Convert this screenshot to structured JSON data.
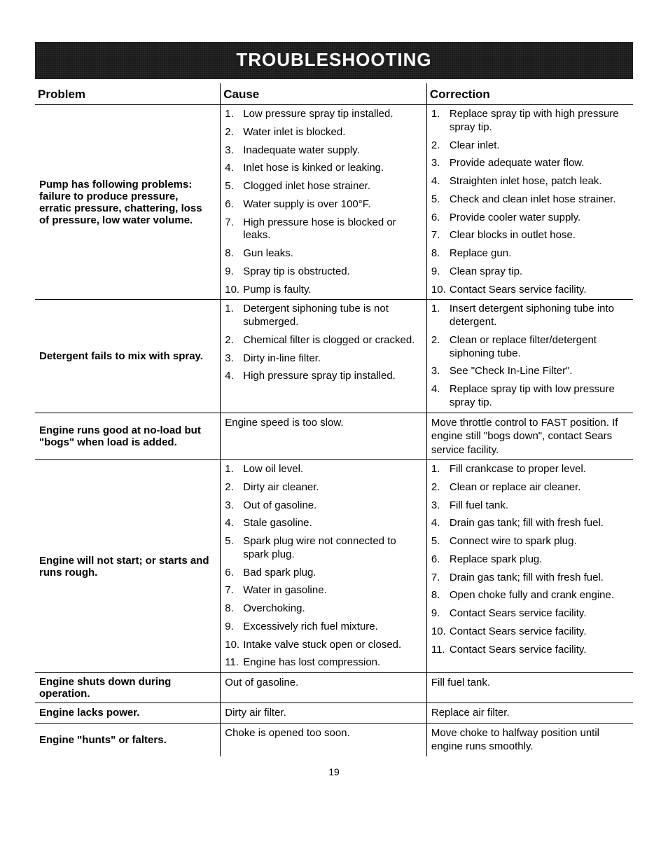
{
  "banner_title": "TROUBLESHOOTING",
  "page_number": "19",
  "headers": {
    "problem": "Problem",
    "cause": "Cause",
    "correction": "Correction"
  },
  "rows": [
    {
      "problem": "Pump has following problems: failure to produce pressure, erratic pressure, chattering, loss of pressure, low water volume.",
      "causes": [
        {
          "n": "1.",
          "t": "Low pressure spray tip installed."
        },
        {
          "n": "2.",
          "t": "Water inlet is blocked."
        },
        {
          "n": "3.",
          "t": "Inadequate water supply."
        },
        {
          "n": "4.",
          "t": "Inlet hose is kinked or leaking."
        },
        {
          "n": "5.",
          "t": "Clogged inlet hose strainer."
        },
        {
          "n": "6.",
          "t": "Water supply is over 100°F."
        },
        {
          "n": "7.",
          "t": "High pressure hose is blocked or leaks."
        },
        {
          "n": "8.",
          "t": "Gun leaks."
        },
        {
          "n": "9.",
          "t": "Spray tip is obstructed."
        },
        {
          "n": "10.",
          "t": "Pump is faulty."
        }
      ],
      "corrections": [
        {
          "n": "1.",
          "t": "Replace spray tip with high pressure spray tip."
        },
        {
          "n": "2.",
          "t": "Clear inlet."
        },
        {
          "n": "3.",
          "t": "Provide adequate water flow."
        },
        {
          "n": "4.",
          "t": "Straighten inlet hose, patch leak."
        },
        {
          "n": "5.",
          "t": "Check and clean inlet hose strainer."
        },
        {
          "n": "6.",
          "t": "Provide cooler water supply."
        },
        {
          "n": "7.",
          "t": "Clear blocks in outlet hose."
        },
        {
          "n": "8.",
          "t": "Replace gun."
        },
        {
          "n": "9.",
          "t": "Clean spray tip."
        },
        {
          "n": "10.",
          "t": "Contact Sears service facility."
        }
      ]
    },
    {
      "problem": "Detergent fails to mix with spray.",
      "causes": [
        {
          "n": "1.",
          "t": "Detergent siphoning tube is not submerged."
        },
        {
          "n": "2.",
          "t": "Chemical filter is clogged or cracked."
        },
        {
          "n": "3.",
          "t": "Dirty in-line filter."
        },
        {
          "n": "4.",
          "t": "High pressure spray tip installed."
        }
      ],
      "corrections": [
        {
          "n": "1.",
          "t": "Insert detergent siphoning tube into detergent."
        },
        {
          "n": "2.",
          "t": "Clean or replace filter/detergent siphoning tube."
        },
        {
          "n": "3.",
          "t": "See \"Check In-Line Filter\"."
        },
        {
          "n": "4.",
          "t": "Replace spray tip with low pressure spray tip."
        }
      ]
    },
    {
      "problem": "Engine runs good at no-load but \"bogs\" when load is added.",
      "cause_plain": "Engine speed is too slow.",
      "correction_plain": "Move throttle control to FAST position. If engine still \"bogs down\", contact Sears service facility."
    },
    {
      "problem": "Engine will not start; or starts and runs rough.",
      "causes": [
        {
          "n": "1.",
          "t": "Low oil level."
        },
        {
          "n": "2.",
          "t": "Dirty air cleaner."
        },
        {
          "n": "3.",
          "t": "Out of gasoline."
        },
        {
          "n": "4.",
          "t": "Stale gasoline."
        },
        {
          "n": "5.",
          "t": "Spark plug wire not connected to spark plug."
        },
        {
          "n": "6.",
          "t": "Bad spark plug."
        },
        {
          "n": "7.",
          "t": "Water in gasoline."
        },
        {
          "n": "8.",
          "t": "Overchoking."
        },
        {
          "n": "9.",
          "t": "Excessively rich fuel mixture."
        },
        {
          "n": "10.",
          "t": "Intake valve stuck open or closed."
        },
        {
          "n": "11.",
          "t": "Engine has lost compression."
        }
      ],
      "corrections": [
        {
          "n": "1.",
          "t": "Fill crankcase to proper level."
        },
        {
          "n": "2.",
          "t": "Clean or replace air cleaner."
        },
        {
          "n": "3.",
          "t": "Fill fuel tank."
        },
        {
          "n": "4.",
          "t": "Drain gas tank; fill with fresh fuel."
        },
        {
          "n": "5.",
          "t": "Connect wire to spark plug."
        },
        {
          "n": "6.",
          "t": "Replace spark plug."
        },
        {
          "n": "7.",
          "t": "Drain gas tank; fill with fresh fuel."
        },
        {
          "n": "8.",
          "t": "Open choke fully and crank engine."
        },
        {
          "n": "9.",
          "t": "Contact Sears service facility."
        },
        {
          "n": "10.",
          "t": "Contact Sears service facility."
        },
        {
          "n": "11.",
          "t": "Contact Sears service facility."
        }
      ]
    },
    {
      "problem": "Engine shuts down during operation.",
      "cause_plain": "Out of gasoline.",
      "correction_plain": "Fill fuel tank."
    },
    {
      "problem": "Engine lacks power.",
      "cause_plain": "Dirty air filter.",
      "correction_plain": "Replace air filter."
    },
    {
      "problem": "Engine \"hunts\" or falters.",
      "cause_plain": "Choke is opened too soon.",
      "correction_plain": "Move choke to halfway position until engine runs smoothly."
    }
  ]
}
